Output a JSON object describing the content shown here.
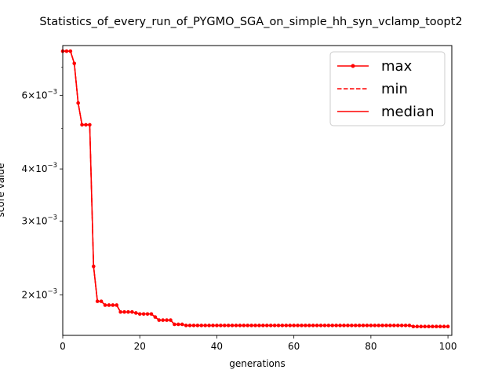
{
  "chart_data": {
    "type": "line",
    "title": "Statistics_of_every_run_of_PYGMO_SGA_on_simple_hh_syn_vclamp_toopt2",
    "xlabel": "generations",
    "ylabel": "score value",
    "xlim": [
      0,
      101
    ],
    "ylim": [
      0.0016,
      0.00789
    ],
    "yscale": "log",
    "grid": false,
    "legend_position": "top-right",
    "x_ticks": [
      0,
      20,
      40,
      60,
      80,
      100
    ],
    "y_major_ticks": [
      {
        "value": 0.002,
        "mantissa": "2",
        "exponent": "−3"
      },
      {
        "value": 0.003,
        "mantissa": "3",
        "exponent": "−3"
      },
      {
        "value": 0.004,
        "mantissa": "4",
        "exponent": "−3"
      },
      {
        "value": 0.006,
        "mantissa": "6",
        "exponent": "−3"
      }
    ],
    "y_tick_prefix": "×10",
    "y_minor_ticks": [
      0.005,
      0.007
    ],
    "x": [
      0,
      1,
      2,
      3,
      4,
      5,
      6,
      7,
      8,
      9,
      10,
      11,
      12,
      13,
      14,
      15,
      16,
      17,
      18,
      19,
      20,
      21,
      22,
      23,
      24,
      25,
      26,
      27,
      28,
      29,
      30,
      31,
      32,
      33,
      34,
      35,
      36,
      37,
      38,
      39,
      40,
      41,
      42,
      43,
      44,
      45,
      46,
      47,
      48,
      49,
      50,
      51,
      52,
      53,
      54,
      55,
      56,
      57,
      58,
      59,
      60,
      61,
      62,
      63,
      64,
      65,
      66,
      67,
      68,
      69,
      70,
      71,
      72,
      73,
      74,
      75,
      76,
      77,
      78,
      79,
      80,
      81,
      82,
      83,
      84,
      85,
      86,
      87,
      88,
      89,
      90,
      91,
      92,
      93,
      94,
      95,
      96,
      97,
      98,
      99,
      100
    ],
    "series": [
      {
        "name": "max",
        "color": "#ff0000",
        "linestyle": "solid",
        "marker": "dot",
        "values": [
          0.00765,
          0.00765,
          0.00765,
          0.00715,
          0.00575,
          0.0051,
          0.0051,
          0.0051,
          0.00234,
          0.00193,
          0.00193,
          0.00189,
          0.00189,
          0.00189,
          0.00189,
          0.00182,
          0.00182,
          0.00182,
          0.00182,
          0.00181,
          0.0018,
          0.0018,
          0.0018,
          0.0018,
          0.00177,
          0.00174,
          0.00174,
          0.00174,
          0.00174,
          0.0017,
          0.0017,
          0.0017,
          0.00169,
          0.00169,
          0.00169,
          0.00169,
          0.00169,
          0.00169,
          0.00169,
          0.00169,
          0.00169,
          0.00169,
          0.00169,
          0.00169,
          0.00169,
          0.00169,
          0.00169,
          0.00169,
          0.00169,
          0.00169,
          0.00169,
          0.00169,
          0.00169,
          0.00169,
          0.00169,
          0.00169,
          0.00169,
          0.00169,
          0.00169,
          0.00169,
          0.00169,
          0.00169,
          0.00169,
          0.00169,
          0.00169,
          0.00169,
          0.00169,
          0.00169,
          0.00169,
          0.00169,
          0.00169,
          0.00169,
          0.00169,
          0.00169,
          0.00169,
          0.00169,
          0.00169,
          0.00169,
          0.00169,
          0.00169,
          0.00169,
          0.00169,
          0.00169,
          0.00169,
          0.00169,
          0.00169,
          0.00169,
          0.00169,
          0.00169,
          0.00169,
          0.00169,
          0.00168,
          0.00168,
          0.00168,
          0.00168,
          0.00168,
          0.00168,
          0.00168,
          0.00168,
          0.00168,
          0.00168
        ]
      },
      {
        "name": "min",
        "color": "#ff0000",
        "linestyle": "dashed",
        "marker": "none",
        "values": [
          0.00765,
          0.00765,
          0.00765,
          0.00715,
          0.00575,
          0.0051,
          0.0051,
          0.0051,
          0.00234,
          0.00193,
          0.00193,
          0.00189,
          0.00189,
          0.00189,
          0.00189,
          0.00182,
          0.00182,
          0.00182,
          0.00182,
          0.00181,
          0.0018,
          0.0018,
          0.0018,
          0.0018,
          0.00177,
          0.00174,
          0.00174,
          0.00174,
          0.00174,
          0.0017,
          0.0017,
          0.0017,
          0.00169,
          0.00169,
          0.00169,
          0.00169,
          0.00169,
          0.00169,
          0.00169,
          0.00169,
          0.00169,
          0.00169,
          0.00169,
          0.00169,
          0.00169,
          0.00169,
          0.00169,
          0.00169,
          0.00169,
          0.00169,
          0.00169,
          0.00169,
          0.00169,
          0.00169,
          0.00169,
          0.00169,
          0.00169,
          0.00169,
          0.00169,
          0.00169,
          0.00169,
          0.00169,
          0.00169,
          0.00169,
          0.00169,
          0.00169,
          0.00169,
          0.00169,
          0.00169,
          0.00169,
          0.00169,
          0.00169,
          0.00169,
          0.00169,
          0.00169,
          0.00169,
          0.00169,
          0.00169,
          0.00169,
          0.00169,
          0.00169,
          0.00169,
          0.00169,
          0.00169,
          0.00169,
          0.00169,
          0.00169,
          0.00169,
          0.00169,
          0.00169,
          0.00169,
          0.00168,
          0.00168,
          0.00168,
          0.00168,
          0.00168,
          0.00168,
          0.00168,
          0.00168,
          0.00168,
          0.00168
        ]
      },
      {
        "name": "median",
        "color": "#ff0000",
        "linestyle": "solid",
        "marker": "none",
        "values": [
          0.00765,
          0.00765,
          0.00765,
          0.00715,
          0.00575,
          0.0051,
          0.0051,
          0.0051,
          0.00234,
          0.00193,
          0.00193,
          0.00189,
          0.00189,
          0.00189,
          0.00189,
          0.00182,
          0.00182,
          0.00182,
          0.00182,
          0.00181,
          0.0018,
          0.0018,
          0.0018,
          0.0018,
          0.00177,
          0.00174,
          0.00174,
          0.00174,
          0.00174,
          0.0017,
          0.0017,
          0.0017,
          0.00169,
          0.00169,
          0.00169,
          0.00169,
          0.00169,
          0.00169,
          0.00169,
          0.00169,
          0.00169,
          0.00169,
          0.00169,
          0.00169,
          0.00169,
          0.00169,
          0.00169,
          0.00169,
          0.00169,
          0.00169,
          0.00169,
          0.00169,
          0.00169,
          0.00169,
          0.00169,
          0.00169,
          0.00169,
          0.00169,
          0.00169,
          0.00169,
          0.00169,
          0.00169,
          0.00169,
          0.00169,
          0.00169,
          0.00169,
          0.00169,
          0.00169,
          0.00169,
          0.00169,
          0.00169,
          0.00169,
          0.00169,
          0.00169,
          0.00169,
          0.00169,
          0.00169,
          0.00169,
          0.00169,
          0.00169,
          0.00169,
          0.00169,
          0.00169,
          0.00169,
          0.00169,
          0.00169,
          0.00169,
          0.00169,
          0.00169,
          0.00169,
          0.00169,
          0.00168,
          0.00168,
          0.00168,
          0.00168,
          0.00168,
          0.00168,
          0.00168,
          0.00168,
          0.00168,
          0.00168
        ]
      }
    ]
  }
}
